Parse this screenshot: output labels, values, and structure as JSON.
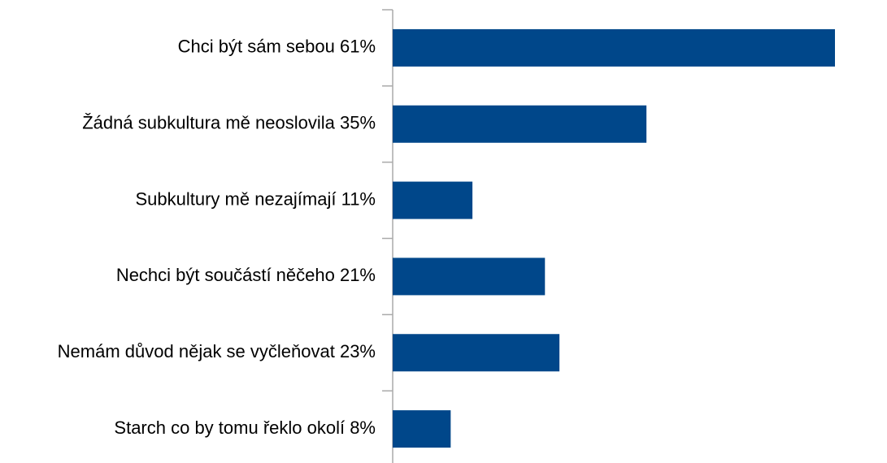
{
  "chart_data": {
    "type": "barh",
    "categories": [
      "Chci být sám sebou 61%",
      "Žádná subkultura mě neoslovila 35%",
      "Subkultury mě nezajímají 11%",
      "Nechci být součástí něčeho 21%",
      "Nemám důvod nějak se vyčleňovat 23%",
      "Starch co by tomu řeklo okolí 8%"
    ],
    "values": [
      61,
      35,
      11,
      21,
      23,
      8
    ],
    "color": "#00478a"
  }
}
